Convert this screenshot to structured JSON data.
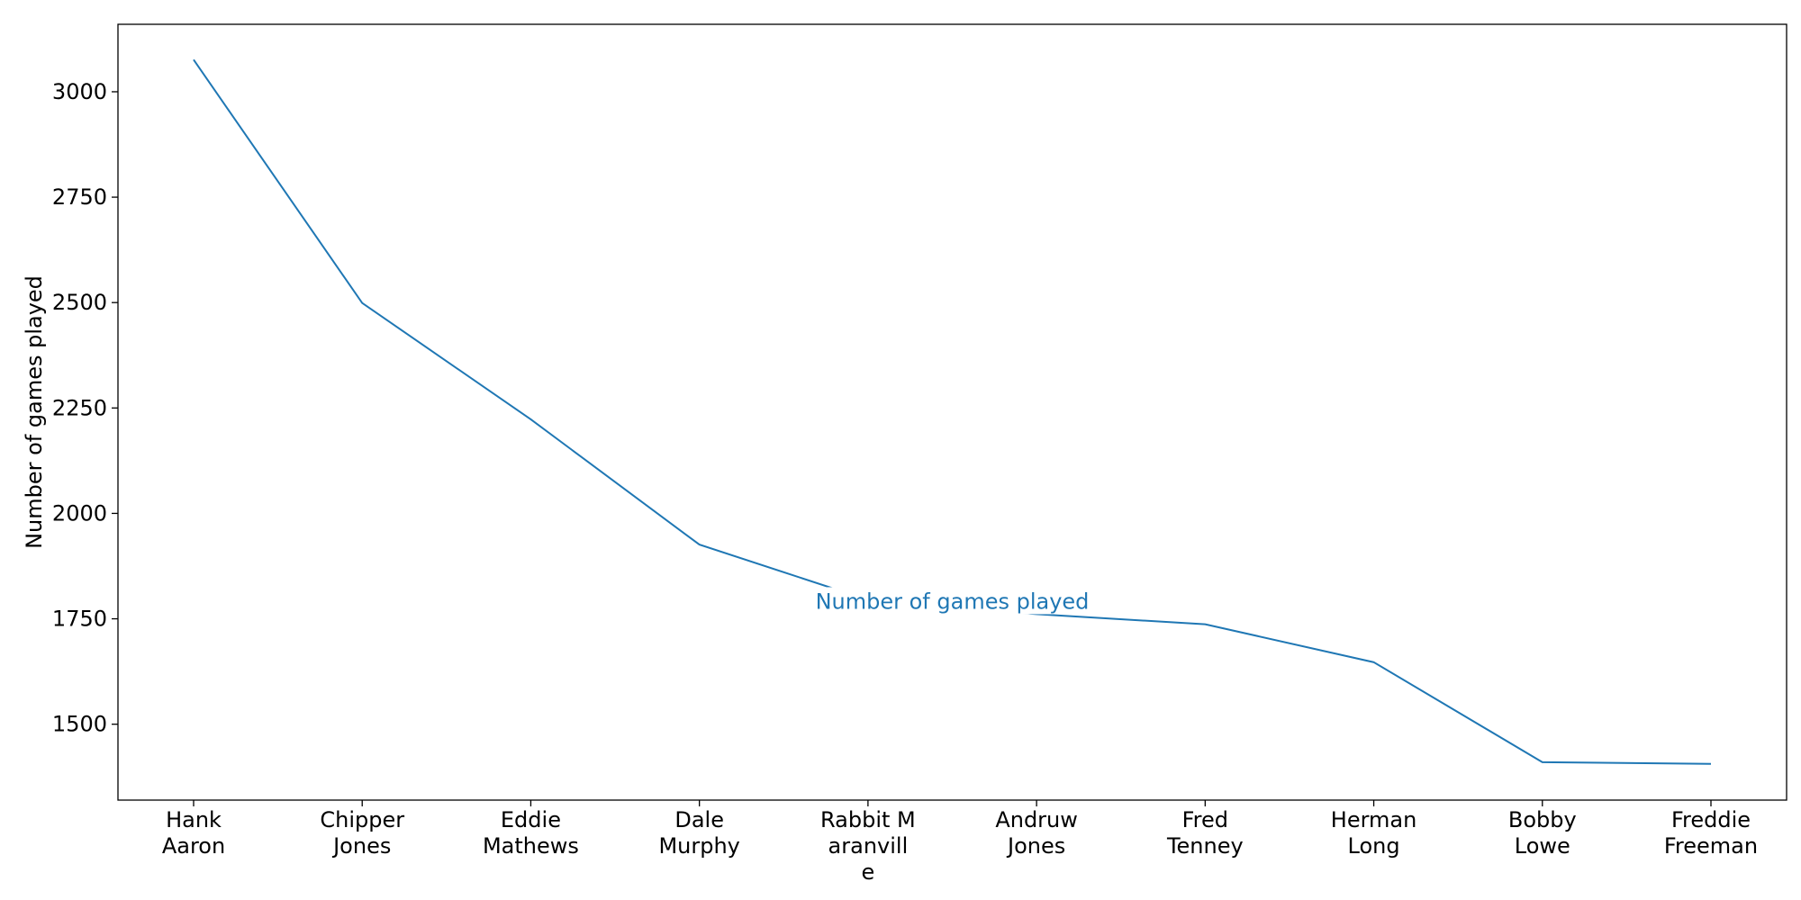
{
  "chart_data": {
    "type": "line",
    "title": "",
    "xlabel": "",
    "ylabel": "Number of games played",
    "categories": [
      [
        "Hank",
        "Aaron"
      ],
      [
        "Chipper",
        "Jones"
      ],
      [
        "Eddie",
        "Mathews"
      ],
      [
        "Dale",
        "Murphy"
      ],
      [
        "Rabbit M",
        "aranvill",
        "e"
      ],
      [
        "Andruw",
        "Jones"
      ],
      [
        "Fred",
        "Tenney"
      ],
      [
        "Herman",
        "Long"
      ],
      [
        "Bobby",
        "Lowe"
      ],
      [
        "Freddie",
        "Freeman"
      ]
    ],
    "series": [
      {
        "name": "Number of games played",
        "values": [
          3076,
          2499,
          2223,
          1926,
          1795,
          1761,
          1737,
          1647,
          1410,
          1406
        ],
        "color": "#1f77b4"
      }
    ],
    "ylim": [
      1320,
      3160
    ],
    "yticks": [
      1500,
      1750,
      2000,
      2250,
      2500,
      2750,
      3000
    ],
    "grid": false,
    "legend": "none",
    "series_label_position": "center"
  }
}
